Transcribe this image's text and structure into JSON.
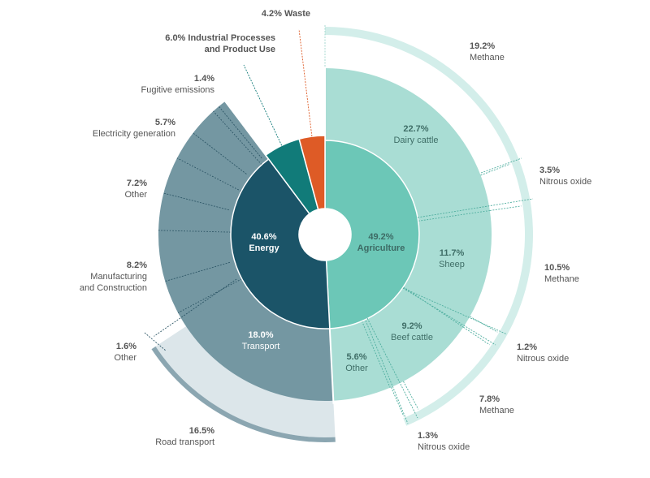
{
  "chart_data": {
    "type": "sunburst",
    "colors": {
      "agriculture_inner": "#6cc7b7",
      "agriculture_outer": "#a9ddd4",
      "agriculture_ring": "#d3eeea",
      "energy_inner": "#1b5468",
      "energy_outer": "#7497a2",
      "energy_ring": "#dce6ea",
      "energy_ring_edge": "#8ba6b1",
      "industrial": "#117b79",
      "waste": "#de5b26"
    },
    "sectors": [
      {
        "id": "agriculture",
        "pct": "49.2%",
        "label": "Agriculture",
        "value": 49.2,
        "subsectors": [
          {
            "id": "dairy",
            "pct": "22.7%",
            "label": "Dairy cattle",
            "value": 22.7,
            "gases": [
              {
                "pct": "19.2%",
                "label": "Methane",
                "value": 19.2
              },
              {
                "pct": "3.5%",
                "label": "Nitrous oxide",
                "value": 3.5
              }
            ]
          },
          {
            "id": "sheep",
            "pct": "11.7%",
            "label": "Sheep",
            "value": 11.7,
            "gases": [
              {
                "pct": "10.5%",
                "label": "Methane",
                "value": 10.5
              },
              {
                "pct": "1.2%",
                "label": "Nitrous oxide",
                "value": 1.2
              }
            ]
          },
          {
            "id": "beef",
            "pct": "9.2%",
            "label": "Beef cattle",
            "value": 9.2,
            "gases": [
              {
                "pct": "7.8%",
                "label": "Methane",
                "value": 7.8
              },
              {
                "pct": "1.3%",
                "label": "Nitrous oxide",
                "value": 1.3
              }
            ]
          },
          {
            "id": "agri-other",
            "pct": "5.6%",
            "label": "Other",
            "value": 5.6,
            "gases": []
          }
        ]
      },
      {
        "id": "energy",
        "pct": "40.6%",
        "label": "Energy",
        "value": 40.6,
        "subsectors": [
          {
            "id": "transport",
            "pct": "18.0%",
            "label": "Transport",
            "value": 18.0,
            "gases": [
              {
                "pct": "16.5%",
                "label": "Road transport",
                "value": 16.5
              },
              {
                "pct": "1.6%",
                "label": "Other",
                "value": 1.6
              }
            ]
          },
          {
            "id": "manufacturing",
            "pct": "8.2%",
            "label": "Manufacturing and Construction",
            "label_lines": [
              "Manufacturing",
              "and Construction"
            ],
            "value": 8.2,
            "gases": []
          },
          {
            "id": "energy-other",
            "pct": "7.2%",
            "label": "Other",
            "value": 7.2,
            "gases": []
          },
          {
            "id": "electricity",
            "pct": "5.7%",
            "label": "Electricity generation",
            "value": 5.7,
            "gases": []
          },
          {
            "id": "fugitive",
            "pct": "1.4%",
            "label": "Fugitive emissions",
            "value": 1.4,
            "gases": []
          }
        ]
      },
      {
        "id": "industrial",
        "pct": "6.0%",
        "label": "Industrial Processes and Product Use",
        "label_lines": [
          "6.0% Industrial Processes",
          "and Product Use"
        ],
        "value": 6.0,
        "subsectors": []
      },
      {
        "id": "waste",
        "pct": "4.2%",
        "label": "Waste",
        "label_lines": [
          "4.2% Waste"
        ],
        "value": 4.2,
        "subsectors": []
      }
    ]
  }
}
